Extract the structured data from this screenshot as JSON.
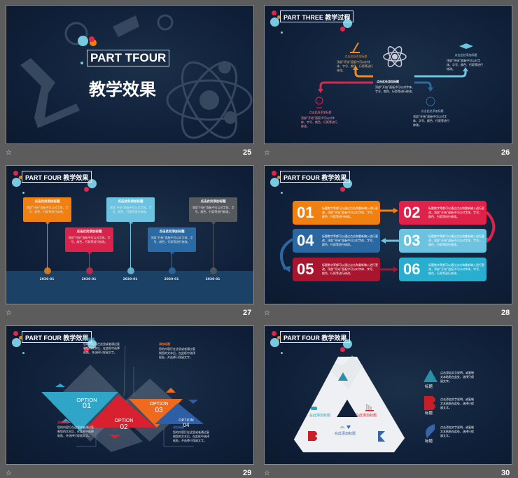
{
  "slides": [
    {
      "number": "25",
      "title_en": "PART TFOUR",
      "title_cn": "教学效果"
    },
    {
      "number": "26",
      "header": "PART THREE 教学过程",
      "center": {
        "title": "点击此处添加标题",
        "body": "顶部“开始”面板中可以对字体、字号、颜色、行距等进行修改。"
      },
      "items": [
        {
          "title": "点击此处添加标题",
          "body": "顶部“开始”面板中可以对字体、字号、颜色、行距等进行修改。",
          "icon": "microscope-icon",
          "color": "#f08a1c"
        },
        {
          "title": "点击此处添加标题",
          "body": "顶部“开始”面板中可以对字体、字号、颜色、行距等进行修改。",
          "icon": "graduation-cap-icon",
          "color": "#6cc6e0"
        },
        {
          "title": "点击此处添加标题",
          "body": "顶部“开始”面板中可以对字体、字号、颜色、行距等进行修改。",
          "icon": "globe-icon",
          "color": "#e0254b"
        },
        {
          "title": "点击此处添加标题",
          "body": "顶部“开始”面板中可以对字体、字号、颜色、行距等进行修改。",
          "icon": "globe-grid-icon",
          "color": "#2a6aa0"
        }
      ]
    },
    {
      "number": "27",
      "header": "PART FOUR 教学效果",
      "items": [
        {
          "title": "点击此处添加标题",
          "body": "顶部“开始”面板中可以对字体、字号、颜色、行距等进行修改。",
          "date": "2030-01",
          "color": "#f08010"
        },
        {
          "title": "点击此处添加标题",
          "body": "顶部“开始”面板中可以对字体、字号、颜色、行距等进行修改。",
          "date": "2030-01",
          "color": "#d9234a"
        },
        {
          "title": "点击此处添加标题",
          "body": "顶部“开始”面板中可以对字体、字号、颜色、行距等进行修改。",
          "date": "2030-01",
          "color": "#6cc3df"
        },
        {
          "title": "点击此处添加标题",
          "body": "顶部“开始”面板中可以对字体、字号、颜色、行距等进行修改。",
          "date": "2030-01",
          "color": "#2a6aa5"
        },
        {
          "title": "点击此处添加标题",
          "body": "顶部“开始”面板中可以对字体、字号、颜色、行距等进行修改。",
          "date": "2030-01",
          "color": "#555a5e"
        }
      ]
    },
    {
      "number": "28",
      "header": "PART FOUR 教学效果",
      "steps": [
        {
          "n": "01",
          "body": "标题数字等都可以通过点击和重新输入进行更改，顶部“开始”面板中可以对字体、字号、颜色、行距等进行修改。",
          "color": "#f08010"
        },
        {
          "n": "02",
          "body": "标题数字等都可以通过点击和重新输入进行更改，顶部“开始”面板中可以对字体、字号、颜色、行距等进行修改。",
          "color": "#df2249"
        },
        {
          "n": "03",
          "body": "标题数字等都可以通过点击和重新输入进行更改，顶部“开始”面板中可以对字体、字号、颜色、行距等进行修改。",
          "color": "#6cc3df"
        },
        {
          "n": "04",
          "body": "标题数字等都可以通过点击和重新输入进行更改，顶部“开始”面板中可以对字体、字号、颜色、行距等进行修改。",
          "color": "#2b67a0"
        },
        {
          "n": "05",
          "body": "标题数字等都可以通过点击和重新输入进行更改，顶部“开始”面板中可以对字体、字号、颜色、行距等进行修改。",
          "color": "#a8152e"
        },
        {
          "n": "06",
          "body": "标题数字等都可以通过点击和重新输入进行更改，顶部“开始”面板中可以对字体、字号、颜色、行距等进行修改。",
          "color": "#2aaed0"
        }
      ]
    },
    {
      "number": "29",
      "header": "PART FOUR 教学效果",
      "options": [
        {
          "label": "OPTION",
          "num": "01",
          "color": "#2fa6c8"
        },
        {
          "label": "OPTION",
          "num": "02",
          "color": "#d9202f"
        },
        {
          "label": "OPTION",
          "num": "03",
          "color": "#ef6a1c"
        },
        {
          "label": "OPTION",
          "num": "04",
          "color": "#2d5ea8"
        }
      ],
      "notes": [
        {
          "title": "添加标题",
          "body": "您的内容打在这里或者通过复制您的文本后，在此框中选择粘贴，并选择只保留文字。",
          "color": "#3aa8d0"
        },
        {
          "title": "添加标题",
          "body": "您的内容打在这里或者通过复制您的文本后，在此框中选择粘贴，并选择只保留文字。",
          "color": "#ef6a1c"
        },
        {
          "title": "添加标题",
          "body": "您的内容打在这里或者通过复制您的文本后，在此框中选择粘贴，并选择只保留文字。",
          "color": "#d9202f"
        },
        {
          "title": "添加标题",
          "body": "您的内容打在这里或者通过复制您的文本后，在此框中选择粘贴，并选择只保留文字。",
          "color": "#3a6ab0"
        }
      ]
    },
    {
      "number": "30",
      "header": "PART FOUR 教学效果",
      "tri_labels": [
        {
          "text": "在此添加标题",
          "color": "#2aa0c0"
        },
        {
          "text": "在此添加标题",
          "color": "#d92030"
        },
        {
          "text": "在此添加标题",
          "color": "#3a66a8"
        }
      ],
      "legend": [
        {
          "title": "标题",
          "body": "点击添加文字说明，或复制文本粘贴在此处，选择只保留文字。",
          "color": "#2a8fa8"
        },
        {
          "title": "标题",
          "body": "点击添加文字说明，或复制文本粘贴在此处，选择只保留文字。",
          "color": "#c81e28"
        },
        {
          "title": "标题",
          "body": "点击添加文字说明，或复制文本粘贴在此处，选择只保留文字。",
          "color": "#3a64a8"
        }
      ]
    }
  ],
  "footer_icon": "star-icon",
  "footer_star": "☆"
}
